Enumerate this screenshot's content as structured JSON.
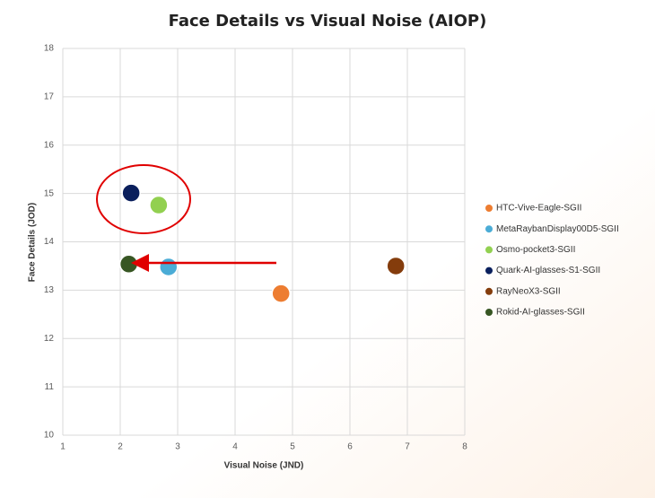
{
  "chart_data": {
    "type": "scatter",
    "title": "Face Details vs Visual Noise (AIOP)",
    "x_label": "Visual Noise (JND)",
    "y_label": "Face Details (JOD)",
    "xlim": [
      1,
      8
    ],
    "xticks": [
      1,
      2,
      3,
      4,
      5,
      6,
      7,
      8
    ],
    "ylim": [
      10,
      18
    ],
    "yticks": [
      10,
      11,
      12,
      13,
      14,
      15,
      16,
      17,
      18
    ],
    "grid": true,
    "legend": "right",
    "series": [
      {
        "name": "HTC-Vive-Eagle-SGII",
        "color": "#ed7d31",
        "x": [
          4.8
        ],
        "values": [
          12.93
        ]
      },
      {
        "name": "MetaRaybanDisplay00D5-SGII",
        "color": "#4bacd6",
        "x": [
          2.84
        ],
        "values": [
          13.48
        ]
      },
      {
        "name": "Osmo-pocket3-SGII",
        "color": "#92d050",
        "x": [
          2.67
        ],
        "values": [
          14.76
        ]
      },
      {
        "name": "Quark-AI-glasses-S1-SGII",
        "color": "#0a1f5c",
        "x": [
          2.19
        ],
        "values": [
          15.01
        ]
      },
      {
        "name": "RayNeoX3-SGII",
        "color": "#843c0c",
        "x": [
          6.8
        ],
        "values": [
          13.5
        ]
      },
      {
        "name": "Rokid-AI-glasses-SGII",
        "color": "#375623",
        "x": [
          2.15
        ],
        "values": [
          13.54
        ]
      }
    ]
  }
}
